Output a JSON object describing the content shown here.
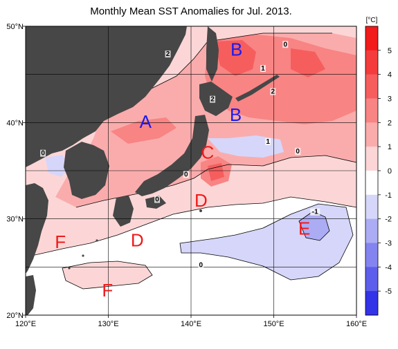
{
  "title": "Monthly Mean SST Anomalies for Jul. 2013.",
  "unit_label": "[°C]",
  "lat_ticks": [
    {
      "lat": 50,
      "label": "50°N"
    },
    {
      "lat": 40,
      "label": "40°N"
    },
    {
      "lat": 30,
      "label": "30°N"
    },
    {
      "lat": 20,
      "label": "20°N"
    }
  ],
  "lon_ticks": [
    {
      "lon": 120,
      "label": "120°E"
    },
    {
      "lon": 130,
      "label": "130°E"
    },
    {
      "lon": 140,
      "label": "140°E"
    },
    {
      "lon": 150,
      "label": "150°E"
    },
    {
      "lon": 160,
      "label": "160°E"
    }
  ],
  "colorbar": {
    "ticks": [
      5,
      4,
      3,
      2,
      1,
      0,
      -1,
      -2,
      -3,
      -4,
      -5
    ],
    "colors": [
      "#f21a1a",
      "#f43c3c",
      "#f65e5e",
      "#f88484",
      "#faacac",
      "#fcd6d6",
      "#ffffff",
      "#d6d6fa",
      "#acacf4",
      "#8484f0",
      "#5e5eec",
      "#3333e8"
    ]
  },
  "contour_labels": [
    {
      "text": "2",
      "lon": 137.2,
      "lat": 46.9
    },
    {
      "text": "0",
      "lon": 151.4,
      "lat": 47.9
    },
    {
      "text": "1",
      "lon": 148.7,
      "lat": 45.4
    },
    {
      "text": "2",
      "lon": 149.9,
      "lat": 43.0
    },
    {
      "text": "2",
      "lon": 142.6,
      "lat": 42.2
    },
    {
      "text": "1",
      "lon": 149.3,
      "lat": 37.8
    },
    {
      "text": "0",
      "lon": 152.9,
      "lat": 36.8
    },
    {
      "text": "0",
      "lon": 122.1,
      "lat": 36.6
    },
    {
      "text": "0",
      "lon": 139.4,
      "lat": 34.4
    },
    {
      "text": "0",
      "lon": 135.9,
      "lat": 31.8
    },
    {
      "text": "-1",
      "lon": 155.0,
      "lat": 30.5
    },
    {
      "text": "0",
      "lon": 141.2,
      "lat": 25.0
    }
  ],
  "region_labels": [
    {
      "text": "B",
      "lon": 145.5,
      "lat": 47.6,
      "color": "#1a1af0"
    },
    {
      "text": "A",
      "lon": 134.5,
      "lat": 40.1,
      "color": "#1a1af0"
    },
    {
      "text": "B",
      "lon": 145.4,
      "lat": 40.8,
      "color": "#1a1af0"
    },
    {
      "text": "C",
      "lon": 142.0,
      "lat": 36.9,
      "color": "#f01a1a"
    },
    {
      "text": "D",
      "lon": 141.2,
      "lat": 31.9,
      "color": "#f01a1a"
    },
    {
      "text": "D",
      "lon": 133.5,
      "lat": 27.8,
      "color": "#f01a1a"
    },
    {
      "text": "E",
      "lon": 153.7,
      "lat": 29.0,
      "color": "#f01a1a"
    },
    {
      "text": "F",
      "lon": 124.2,
      "lat": 27.6,
      "color": "#f01a1a"
    },
    {
      "text": "F",
      "lon": 129.9,
      "lat": 22.6,
      "color": "#f01a1a"
    }
  ],
  "land_color": "#474747",
  "map_extent": {
    "lon": [
      120,
      160
    ],
    "lat": [
      20,
      50
    ]
  }
}
